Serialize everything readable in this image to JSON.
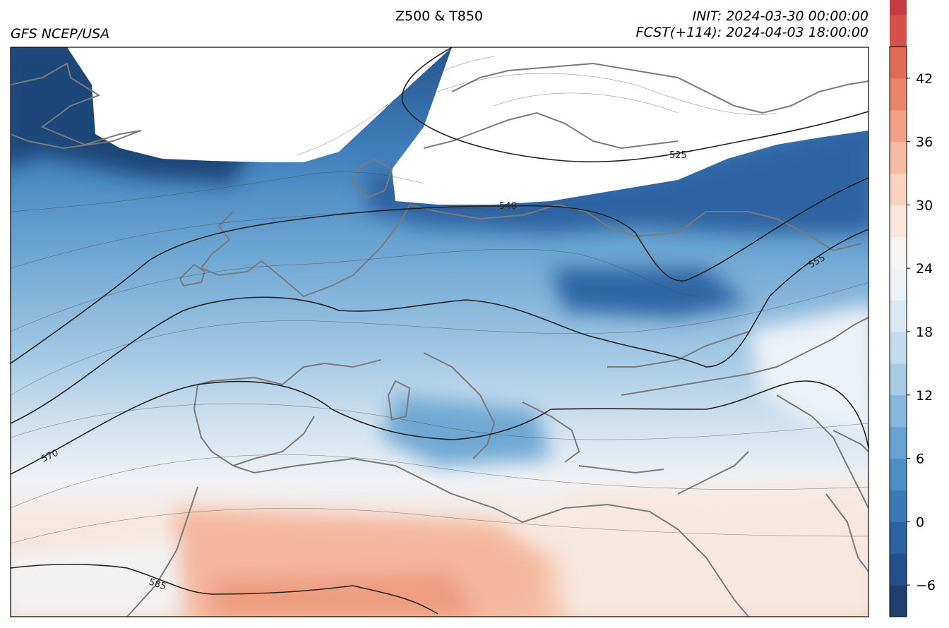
{
  "title": "Z500 & T850",
  "model": "GFS NCEP/USA",
  "init": "INIT: 2024-03-30 00:00:00",
  "forecast": "FCST(+114): 2024-04-03 18:00:00",
  "colorbar": {
    "min": -9,
    "max": 45,
    "step": 3,
    "tick_values": [
      -6,
      0,
      6,
      12,
      18,
      24,
      30,
      36,
      42
    ],
    "tick_labels": [
      "−6",
      "0",
      "6",
      "12",
      "18",
      "24",
      "30",
      "36",
      "42"
    ],
    "colors": [
      "#1f3f6e",
      "#24508a",
      "#2b62a0",
      "#3a78b6",
      "#4d8ec4",
      "#67a3d0",
      "#86b8dc",
      "#a6cbe5",
      "#c3dced",
      "#dbe9f3",
      "#edf2f7",
      "#f7f5f3",
      "#fbe6dc",
      "#f9d3c0",
      "#f6bba2",
      "#f2a184",
      "#e9866a",
      "#df6d56",
      "#d4524a",
      "#c53c43",
      "#ad2a3a",
      "#8e1d33"
    ]
  },
  "contours": {
    "z500_labels": [
      "525",
      "540",
      "555",
      "570",
      "585"
    ]
  }
}
